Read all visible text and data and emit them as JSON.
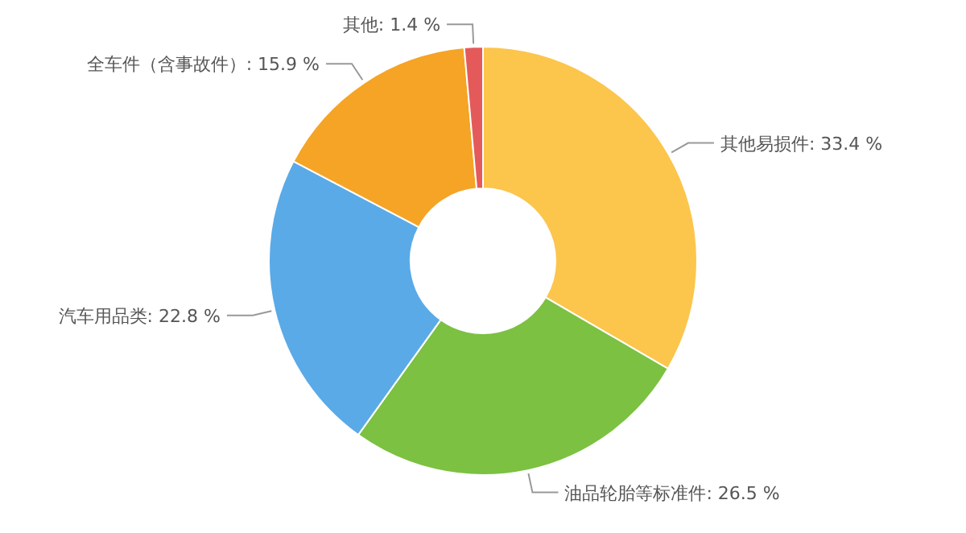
{
  "chart_data": {
    "type": "donut",
    "categories": [
      "其他易损件",
      "油品轮胎等标准件",
      "汽车用品类",
      "全车件（含事故件）",
      "其他"
    ],
    "values": [
      33.4,
      26.5,
      22.8,
      15.9,
      1.4
    ],
    "value_labels": [
      "33.4 %",
      "26.5 %",
      "22.8 %",
      "15.9 %",
      "1.4 %"
    ],
    "colors": [
      "#fcc54c",
      "#7cc142",
      "#5aaae8",
      "#f5a425",
      "#e45a5a"
    ]
  }
}
